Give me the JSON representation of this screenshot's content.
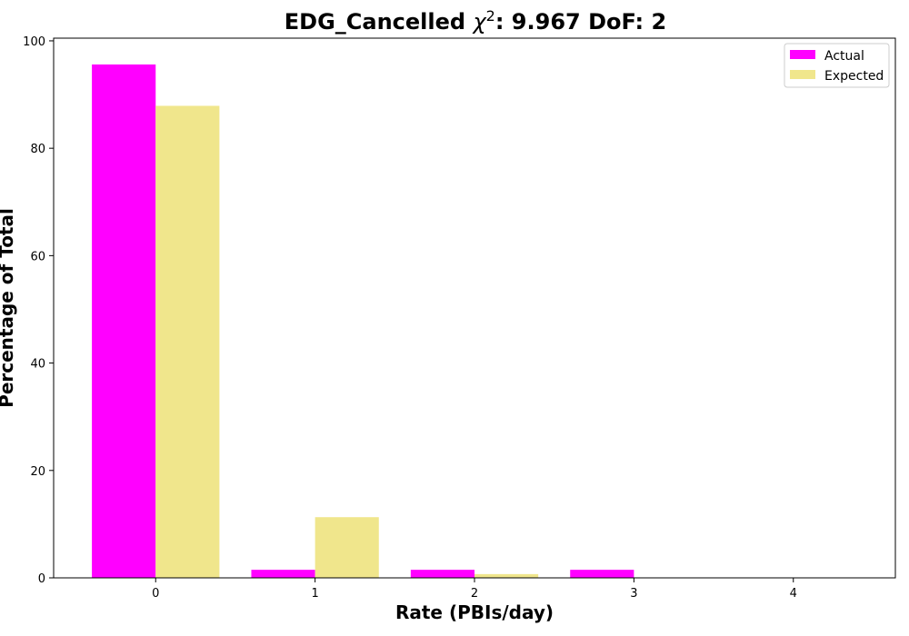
{
  "chart_data": {
    "type": "bar",
    "title_prefix": "EDG_Cancelled ",
    "title_chi": "χ",
    "title_sup": "2",
    "title_suffix": ": 9.967 DoF: 2",
    "xlabel": "Rate (PBIs/day)",
    "ylabel": "Percentage of Total",
    "categories": [
      "0",
      "1",
      "2",
      "3",
      "4"
    ],
    "x": [
      0,
      1,
      2,
      3,
      4
    ],
    "series": [
      {
        "name": "Actual",
        "color": "#ff00ff",
        "values": [
          95.6,
          1.5,
          1.5,
          1.5,
          0
        ]
      },
      {
        "name": "Expected",
        "color": "#f0e68c",
        "values": [
          87.9,
          11.3,
          0.7,
          0.0,
          0.0
        ]
      }
    ],
    "yticks": [
      0,
      20,
      40,
      60,
      80,
      100
    ],
    "ylim": [
      0,
      100.5
    ],
    "xlim": [
      -0.64,
      4.64
    ],
    "grid": false,
    "legend_position": "top-right"
  }
}
